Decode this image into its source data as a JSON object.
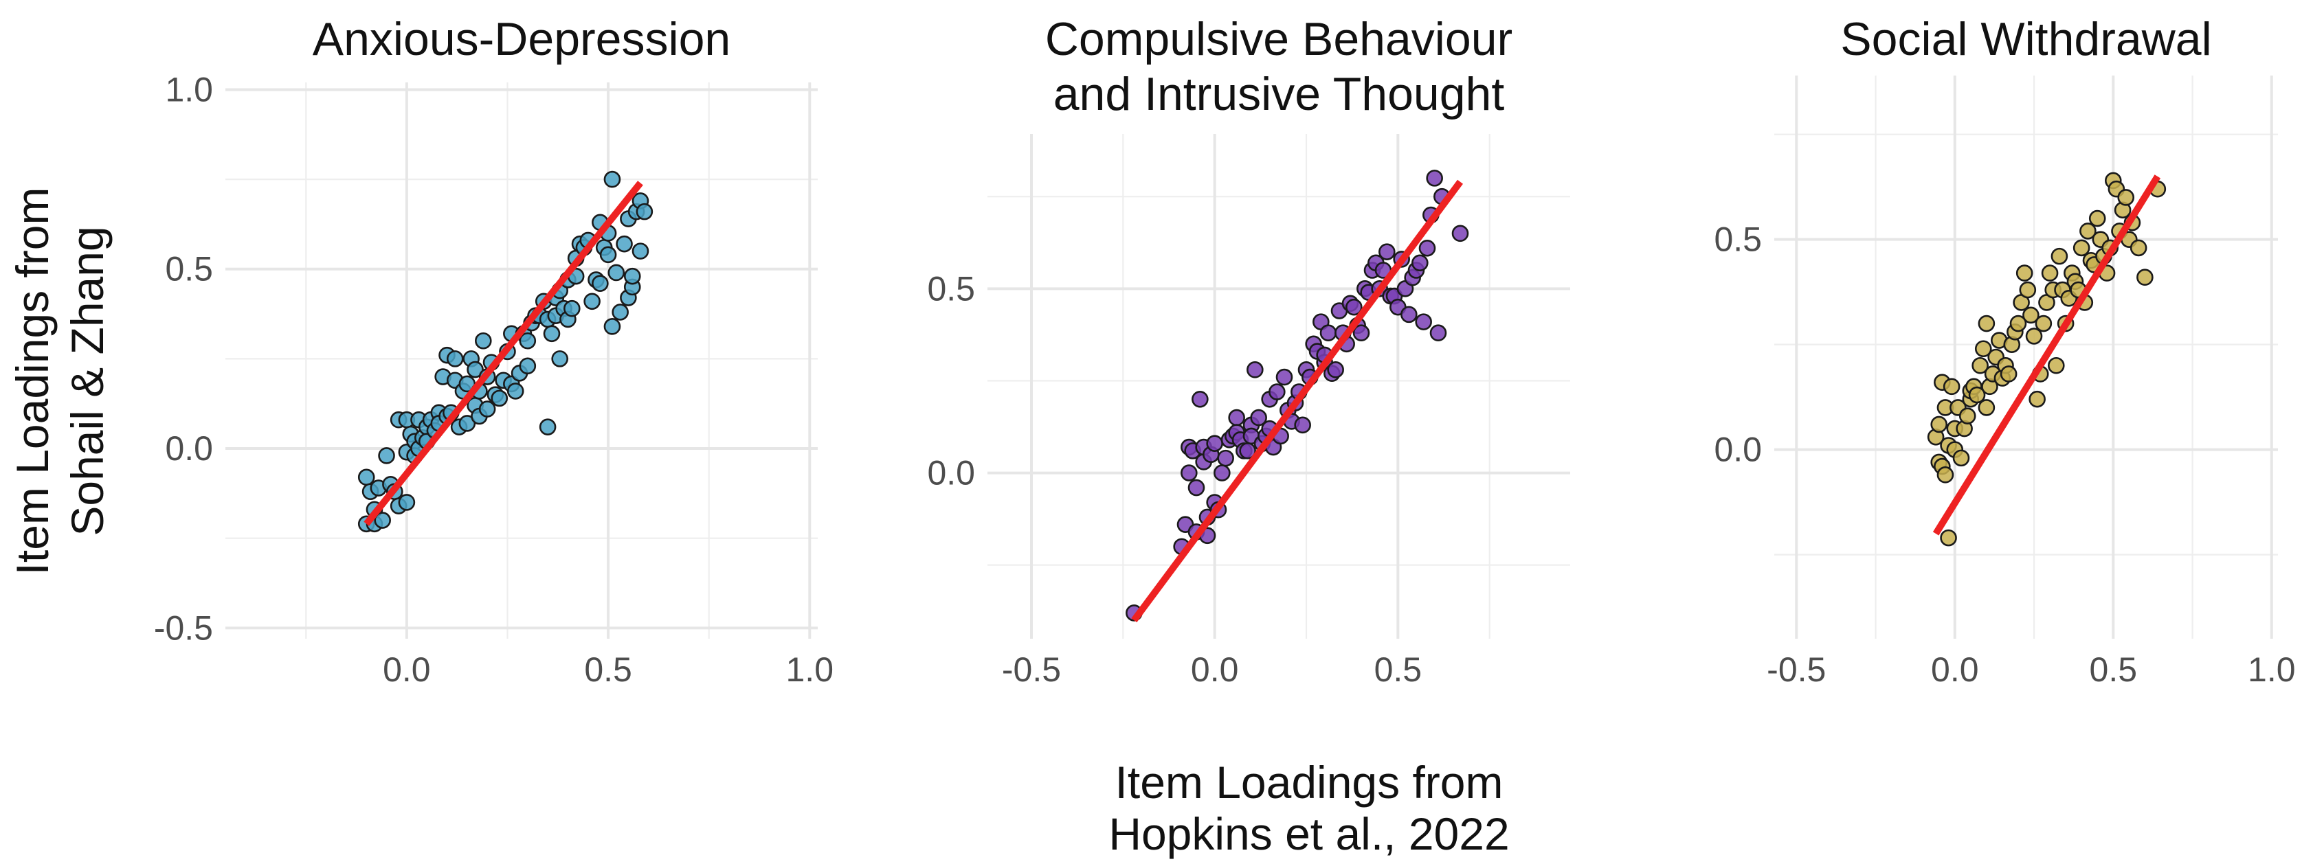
{
  "figure": {
    "ylabel_lines": [
      "Item Loadings from",
      "Sohail & Zhang"
    ],
    "xlabel_lines": [
      "Item Loadings from",
      "Hopkins et al., 2022"
    ]
  },
  "chart_data": [
    {
      "type": "scatter",
      "title_lines": [
        "Anxious-Depression"
      ],
      "color": "#4ba3c7",
      "fit_color": "#ee2222",
      "xlim": [
        -0.45,
        1.02
      ],
      "ylim": [
        -0.53,
        1.02
      ],
      "x_ticks": [
        0.0,
        0.5,
        1.0
      ],
      "x_tick_labels": [
        "0.0",
        "0.5",
        "1.0"
      ],
      "y_ticks": [
        -0.5,
        0.0,
        0.5,
        1.0
      ],
      "y_tick_labels": [
        "-0.5",
        "0.0",
        "0.5",
        "1.0"
      ],
      "fit": {
        "x": [
          -0.1,
          0.58
        ],
        "y": [
          -0.21,
          0.74
        ]
      },
      "x": [
        -0.1,
        -0.1,
        -0.09,
        -0.08,
        -0.08,
        -0.07,
        -0.06,
        -0.05,
        -0.04,
        -0.03,
        -0.02,
        -0.02,
        0.0,
        0.0,
        0.0,
        0.01,
        0.02,
        0.02,
        0.03,
        0.03,
        0.04,
        0.05,
        0.05,
        0.06,
        0.07,
        0.08,
        0.08,
        0.09,
        0.1,
        0.1,
        0.11,
        0.12,
        0.12,
        0.13,
        0.14,
        0.15,
        0.15,
        0.16,
        0.17,
        0.17,
        0.18,
        0.18,
        0.19,
        0.2,
        0.2,
        0.21,
        0.22,
        0.23,
        0.24,
        0.25,
        0.26,
        0.26,
        0.27,
        0.28,
        0.29,
        0.3,
        0.3,
        0.31,
        0.32,
        0.33,
        0.34,
        0.35,
        0.35,
        0.36,
        0.37,
        0.37,
        0.38,
        0.38,
        0.39,
        0.4,
        0.4,
        0.41,
        0.42,
        0.42,
        0.43,
        0.44,
        0.45,
        0.46,
        0.47,
        0.48,
        0.48,
        0.49,
        0.5,
        0.5,
        0.51,
        0.51,
        0.52,
        0.53,
        0.54,
        0.55,
        0.55,
        0.56,
        0.56,
        0.57,
        0.58,
        0.58,
        0.59
      ],
      "y": [
        -0.08,
        -0.21,
        -0.12,
        -0.17,
        -0.21,
        -0.11,
        -0.2,
        -0.02,
        -0.1,
        -0.12,
        -0.16,
        0.08,
        0.08,
        -0.01,
        -0.15,
        0.04,
        0.02,
        -0.02,
        0.08,
        0.0,
        0.03,
        0.06,
        0.02,
        0.08,
        0.05,
        0.1,
        0.07,
        0.2,
        0.09,
        0.26,
        0.1,
        0.19,
        0.25,
        0.06,
        0.16,
        0.07,
        0.18,
        0.25,
        0.22,
        0.12,
        0.09,
        0.16,
        0.3,
        0.11,
        0.2,
        0.24,
        0.15,
        0.14,
        0.19,
        0.27,
        0.18,
        0.32,
        0.16,
        0.21,
        0.32,
        0.3,
        0.23,
        0.35,
        0.37,
        0.37,
        0.41,
        0.36,
        0.06,
        0.32,
        0.37,
        0.42,
        0.25,
        0.44,
        0.39,
        0.36,
        0.47,
        0.39,
        0.48,
        0.53,
        0.57,
        0.56,
        0.58,
        0.41,
        0.47,
        0.63,
        0.46,
        0.56,
        0.54,
        0.6,
        0.75,
        0.34,
        0.49,
        0.38,
        0.57,
        0.64,
        0.42,
        0.45,
        0.48,
        0.66,
        0.55,
        0.69,
        0.66
      ]
    },
    {
      "type": "scatter",
      "title_lines": [
        "Compulsive Behaviour",
        "and Intrusive Thought"
      ],
      "color": "#7a3fb5",
      "fit_color": "#ee2222",
      "xlim": [
        -0.62,
        0.97
      ],
      "ylim": [
        -0.45,
        0.92
      ],
      "x_ticks": [
        -0.5,
        0.0,
        0.5
      ],
      "x_tick_labels": [
        "-0.5",
        "0.0",
        "0.5"
      ],
      "y_ticks": [
        0.0,
        0.5
      ],
      "y_tick_labels": [
        "0.0",
        "0.5"
      ],
      "fit": {
        "x": [
          -0.22,
          0.67
        ],
        "y": [
          -0.4,
          0.79
        ]
      },
      "x": [
        -0.22,
        -0.09,
        -0.08,
        -0.07,
        -0.07,
        -0.06,
        -0.05,
        -0.05,
        -0.04,
        -0.03,
        -0.03,
        -0.02,
        -0.02,
        -0.01,
        0.0,
        0.0,
        0.01,
        0.02,
        0.03,
        0.04,
        0.05,
        0.06,
        0.06,
        0.07,
        0.08,
        0.09,
        0.1,
        0.1,
        0.11,
        0.12,
        0.13,
        0.14,
        0.15,
        0.15,
        0.16,
        0.17,
        0.18,
        0.19,
        0.2,
        0.21,
        0.22,
        0.23,
        0.24,
        0.25,
        0.26,
        0.27,
        0.28,
        0.29,
        0.3,
        0.3,
        0.31,
        0.32,
        0.33,
        0.34,
        0.35,
        0.36,
        0.37,
        0.38,
        0.39,
        0.4,
        0.41,
        0.42,
        0.43,
        0.44,
        0.45,
        0.46,
        0.47,
        0.48,
        0.49,
        0.5,
        0.51,
        0.52,
        0.53,
        0.54,
        0.55,
        0.56,
        0.57,
        0.58,
        0.59,
        0.6,
        0.61,
        0.62,
        0.67
      ],
      "y": [
        -0.38,
        -0.2,
        -0.14,
        0.07,
        0.0,
        0.06,
        -0.04,
        -0.16,
        0.2,
        0.03,
        0.07,
        -0.12,
        -0.17,
        0.05,
        0.08,
        -0.08,
        -0.1,
        0.0,
        0.04,
        0.09,
        0.1,
        0.15,
        0.11,
        0.09,
        0.06,
        0.06,
        0.13,
        0.1,
        0.28,
        0.15,
        0.08,
        0.1,
        0.12,
        0.2,
        0.07,
        0.22,
        0.1,
        0.26,
        0.17,
        0.14,
        0.19,
        0.22,
        0.13,
        0.28,
        0.26,
        0.35,
        0.33,
        0.41,
        0.3,
        0.32,
        0.38,
        0.27,
        0.28,
        0.44,
        0.38,
        0.35,
        0.46,
        0.45,
        0.4,
        0.38,
        0.5,
        0.49,
        0.55,
        0.57,
        0.5,
        0.55,
        0.6,
        0.48,
        0.48,
        0.45,
        0.58,
        0.5,
        0.43,
        0.53,
        0.55,
        0.57,
        0.41,
        0.61,
        0.7,
        0.8,
        0.38,
        0.75,
        0.65
      ]
    },
    {
      "type": "scatter",
      "title_lines": [
        "Social Withdrawal"
      ],
      "color": "#c8b04f",
      "fit_color": "#ee2222",
      "xlim": [
        -0.57,
        1.02
      ],
      "ylim": [
        -0.45,
        0.89
      ],
      "x_ticks": [
        -0.5,
        0.0,
        0.5,
        1.0
      ],
      "x_tick_labels": [
        "-0.5",
        "0.0",
        "0.5",
        "1.0"
      ],
      "y_ticks": [
        0.0,
        0.5
      ],
      "y_tick_labels": [
        "0.0",
        "0.5"
      ],
      "fit": {
        "x": [
          -0.06,
          0.64
        ],
        "y": [
          -0.2,
          0.65
        ]
      },
      "x": [
        -0.06,
        -0.05,
        -0.05,
        -0.04,
        -0.04,
        -0.03,
        -0.03,
        -0.02,
        -0.02,
        -0.01,
        0.0,
        0.0,
        0.01,
        0.02,
        0.03,
        0.04,
        0.05,
        0.05,
        0.06,
        0.07,
        0.08,
        0.09,
        0.1,
        0.1,
        0.11,
        0.12,
        0.13,
        0.14,
        0.15,
        0.16,
        0.17,
        0.18,
        0.19,
        0.2,
        0.21,
        0.22,
        0.23,
        0.24,
        0.25,
        0.26,
        0.27,
        0.28,
        0.29,
        0.3,
        0.31,
        0.32,
        0.33,
        0.34,
        0.35,
        0.36,
        0.37,
        0.38,
        0.39,
        0.4,
        0.41,
        0.42,
        0.43,
        0.44,
        0.45,
        0.46,
        0.47,
        0.48,
        0.49,
        0.5,
        0.51,
        0.52,
        0.53,
        0.54,
        0.55,
        0.56,
        0.58,
        0.6,
        0.64
      ],
      "y": [
        0.03,
        -0.03,
        0.06,
        -0.04,
        0.16,
        0.1,
        -0.06,
        0.01,
        -0.21,
        0.15,
        0.05,
        0.0,
        0.1,
        -0.02,
        0.05,
        0.08,
        0.12,
        0.14,
        0.15,
        0.13,
        0.2,
        0.24,
        0.1,
        0.3,
        0.15,
        0.18,
        0.22,
        0.26,
        0.17,
        0.2,
        0.18,
        0.25,
        0.28,
        0.3,
        0.35,
        0.42,
        0.38,
        0.32,
        0.27,
        0.12,
        0.18,
        0.3,
        0.35,
        0.42,
        0.38,
        0.2,
        0.46,
        0.38,
        0.3,
        0.36,
        0.42,
        0.4,
        0.38,
        0.48,
        0.35,
        0.52,
        0.45,
        0.44,
        0.55,
        0.5,
        0.46,
        0.42,
        0.48,
        0.64,
        0.62,
        0.52,
        0.57,
        0.6,
        0.5,
        0.54,
        0.48,
        0.41,
        0.62
      ]
    }
  ]
}
